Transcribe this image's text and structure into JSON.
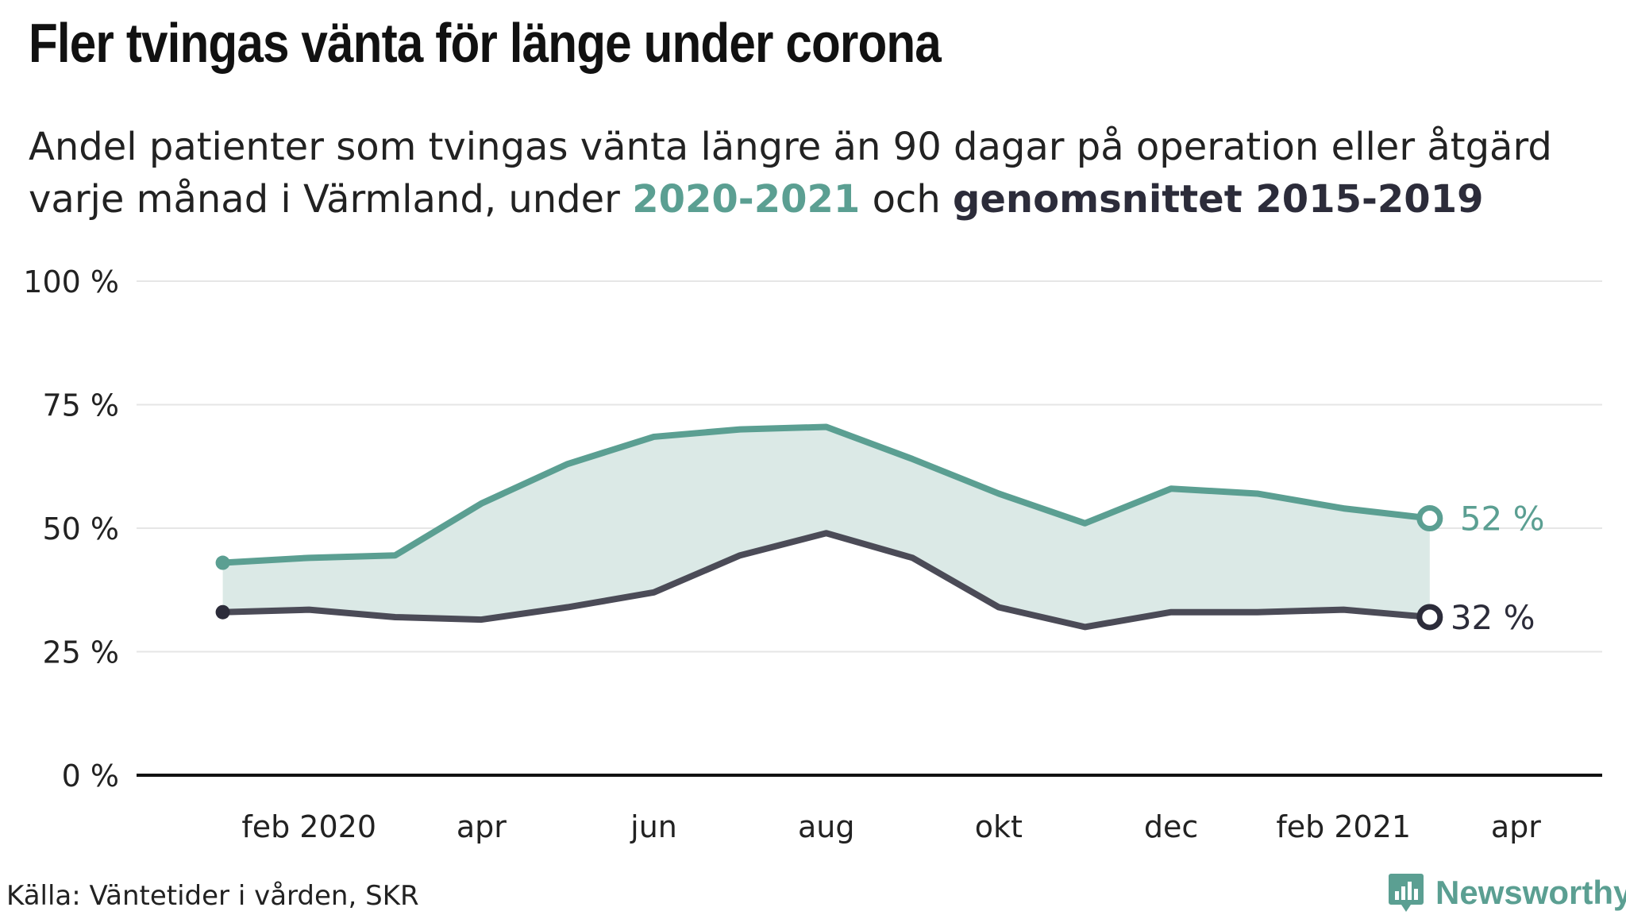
{
  "title": "Fler tvingas vänta för länge under corona",
  "subtitle": {
    "prefix": "Andel patienter som tvingas vänta längre än 90 dagar på operation eller åtgärd varje månad i Värmland, under",
    "series1": "2020-2021",
    "middle": "och",
    "series2": "genomsnittet 2015-2019"
  },
  "source": "Källa: Väntetider i vården, SKR",
  "logo": {
    "text": "Newsworthy",
    "icon": "newsworthy-logo-icon"
  },
  "colors": {
    "series1": "#5b9f92",
    "series2": "#4b4b57",
    "fill": "#dbe9e6",
    "grid": "#e6e6e6",
    "axis": "#111111"
  },
  "chart_data": {
    "type": "line",
    "x": [
      "2020-01",
      "2020-02",
      "2020-03",
      "2020-04",
      "2020-05",
      "2020-06",
      "2020-07",
      "2020-08",
      "2020-09",
      "2020-10",
      "2020-11",
      "2020-12",
      "2021-01",
      "2021-02",
      "2021-03"
    ],
    "x_tick_labels": [
      "feb 2020",
      "apr",
      "jun",
      "aug",
      "okt",
      "dec",
      "feb 2021",
      "apr"
    ],
    "x_tick_months": [
      "2020-02",
      "2020-04",
      "2020-06",
      "2020-08",
      "2020-10",
      "2020-12",
      "2021-02",
      "2021-04"
    ],
    "y_tick_labels": [
      "0 %",
      "25 %",
      "50 %",
      "75 %",
      "100 %"
    ],
    "y_ticks": [
      0,
      25,
      50,
      75,
      100
    ],
    "ylim": [
      0,
      100
    ],
    "xlim": [
      "2019-12",
      "2021-05"
    ],
    "grid": true,
    "fill_between": true,
    "series": [
      {
        "name": "2020-2021",
        "values": [
          43,
          44,
          44.5,
          55,
          63,
          68.5,
          70,
          70.5,
          64,
          57,
          51,
          58,
          57,
          54,
          52
        ],
        "end_label": "52 %"
      },
      {
        "name": "genomsnittet 2015-2019",
        "values": [
          33,
          33.5,
          32,
          31.5,
          34,
          37,
          44.5,
          49,
          44,
          34,
          30,
          33,
          33,
          33.5,
          32
        ],
        "end_label": "32 %"
      }
    ]
  }
}
